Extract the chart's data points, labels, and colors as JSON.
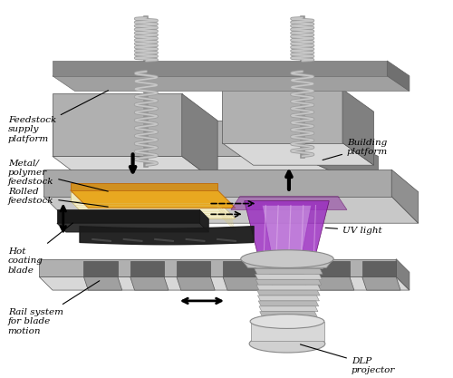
{
  "title": "",
  "bg_color": "#ffffff",
  "labels": {
    "rail_system": "Rail system\nfor blade\nmotion",
    "hot_coating": "Hot\ncoating\nblade",
    "rolled_feedstock": "Rolled\nfeedstock",
    "metal_polymer": "Metal/\npolymer\nfeedstock",
    "feedstock_supply": "Feedstock\nsupply\nplatform",
    "dlp_projector": "DLP\nprojector",
    "uv_light": "UV light",
    "building_platform": "Building\nplatform"
  },
  "colors": {
    "machine_gray": "#b0b0b0",
    "machine_dark": "#808080",
    "machine_light": "#d8d8d8",
    "rail_color": "#909090",
    "blade_dark": "#1a1a1a",
    "blade_med": "#333333",
    "feedstock_cream": "#f5f0d0",
    "feedstock_gold": "#e8a820",
    "uv_purple_dark": "#6a0080",
    "uv_purple_mid": "#9b30c0",
    "uv_purple_light": "#c890e0",
    "projector_top": "#e0e0e0",
    "projector_mid": "#c8c8c8",
    "screw_color": "#c0c0c0",
    "platform_gray": "#888888",
    "arrow_color": "#000000",
    "platform_table": "#a8a8a8"
  }
}
